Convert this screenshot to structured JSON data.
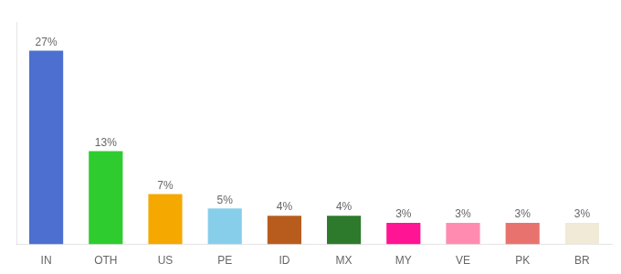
{
  "chart_data": {
    "type": "bar",
    "categories": [
      "IN",
      "OTH",
      "US",
      "PE",
      "ID",
      "MX",
      "MY",
      "VE",
      "PK",
      "BR"
    ],
    "values": [
      27,
      13,
      7,
      5,
      4,
      4,
      3,
      3,
      3,
      3
    ],
    "value_labels": [
      "27%",
      "13%",
      "7%",
      "5%",
      "4%",
      "4%",
      "3%",
      "3%",
      "3%",
      "3%"
    ],
    "colors": [
      "#4d6fd0",
      "#2ecc2e",
      "#f5a800",
      "#87ceeb",
      "#b85c1e",
      "#2d7a2d",
      "#ff1493",
      "#ff8cb0",
      "#e8736e",
      "#f0ead6"
    ],
    "ylim": [
      0,
      31
    ],
    "data_labels": true,
    "tick_labels": "x",
    "grid": false
  }
}
